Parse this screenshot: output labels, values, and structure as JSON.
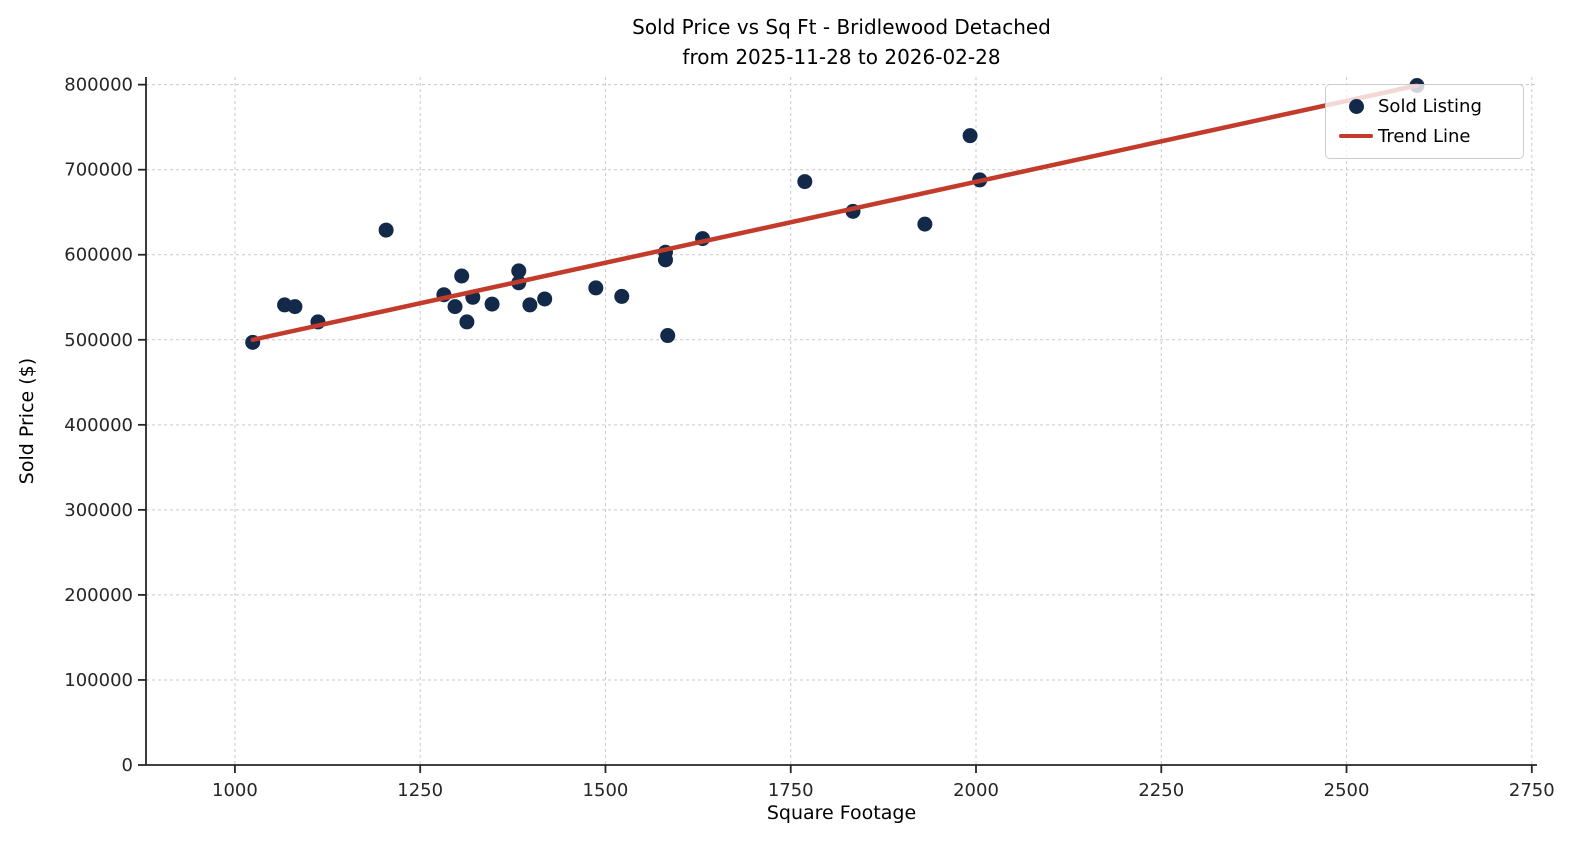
{
  "figure": {
    "title_line1": "Sold Price vs Sq Ft - Bridlewood Detached",
    "title_line2": "from 2025-11-28 to 2026-02-28"
  },
  "chart_data": {
    "type": "scatter",
    "title": "Sold Price vs Sq Ft - Bridlewood Detached\nfrom 2025-11-28 to 2026-02-28",
    "xlabel": "Square Footage",
    "ylabel": "Sold Price ($)",
    "xlim": [
      880,
      2757
    ],
    "ylim": [
      0,
      809000
    ],
    "x_ticks": [
      1000,
      1250,
      1500,
      1750,
      2000,
      2250,
      2500,
      2750
    ],
    "y_ticks": [
      0,
      100000,
      200000,
      300000,
      400000,
      500000,
      600000,
      700000,
      800000
    ],
    "grid": true,
    "grid_style": "dashed",
    "legend_position": "upper right",
    "series": [
      {
        "name": "Sold Listing",
        "type": "scatter",
        "color": "#13294a",
        "points": [
          [
            1024,
            497000
          ],
          [
            1067,
            541000
          ],
          [
            1081,
            539000
          ],
          [
            1112,
            521000
          ],
          [
            1204,
            629000
          ],
          [
            1282,
            553000
          ],
          [
            1297,
            539000
          ],
          [
            1306,
            575000
          ],
          [
            1313,
            521000
          ],
          [
            1321,
            550000
          ],
          [
            1347,
            542000
          ],
          [
            1383,
            581000
          ],
          [
            1383,
            567000
          ],
          [
            1398,
            541000
          ],
          [
            1418,
            548000
          ],
          [
            1487,
            561000
          ],
          [
            1522,
            551000
          ],
          [
            1581,
            603000
          ],
          [
            1581,
            594000
          ],
          [
            1584,
            505000
          ],
          [
            1631,
            619000
          ],
          [
            1769,
            686000
          ],
          [
            1834,
            651000
          ],
          [
            1931,
            636000
          ],
          [
            1992,
            740000
          ],
          [
            2005,
            688000
          ],
          [
            2595,
            799000
          ]
        ]
      },
      {
        "name": "Trend Line",
        "type": "line",
        "color": "#c23b2b",
        "points": [
          [
            1024,
            500000
          ],
          [
            2595,
            799000
          ]
        ]
      }
    ]
  }
}
